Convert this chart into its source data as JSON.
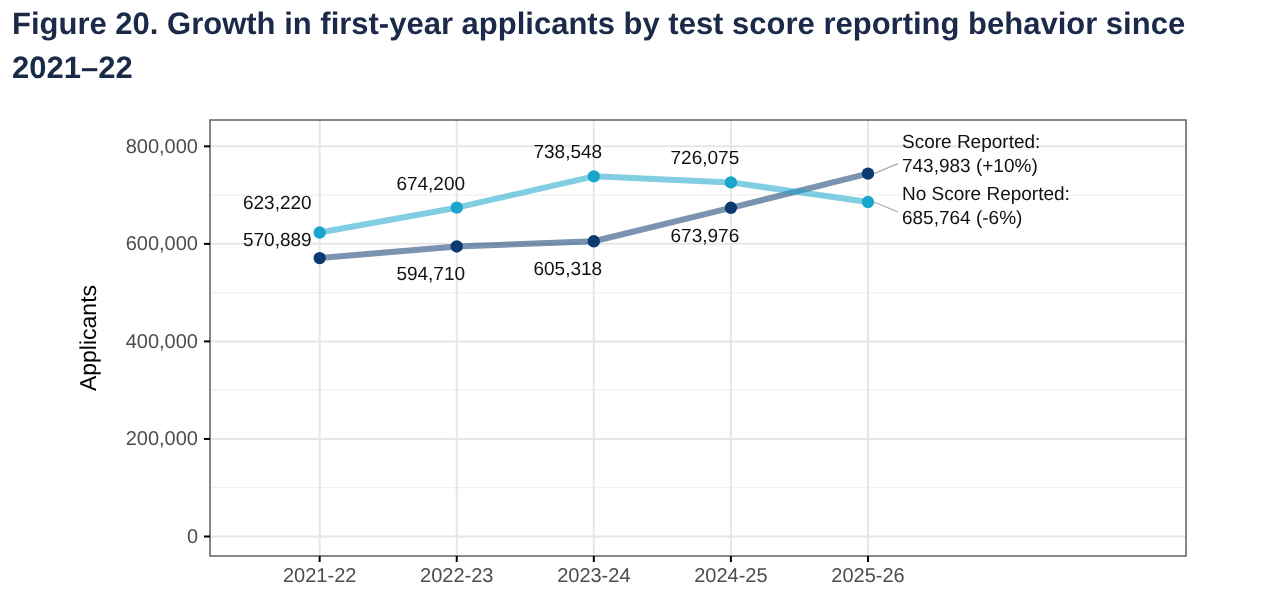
{
  "chart_data": {
    "type": "line",
    "title": "Figure 20. Growth in first-year applicants by test score reporting behavior since 2021–22",
    "ylabel": "Applicants",
    "categories": [
      "2021-22",
      "2022-23",
      "2023-24",
      "2024-25",
      "2025-26"
    ],
    "series": [
      {
        "name": "Score Reported:",
        "color": "#0b3a70",
        "values": [
          570889,
          594710,
          605318,
          673976,
          743983
        ],
        "value_labels": [
          "570,889",
          "594,710",
          "605,318",
          "673,976",
          "743,983 (+10%)"
        ]
      },
      {
        "name": "No Score Reported:",
        "color": "#1aa6cc",
        "values": [
          623220,
          674200,
          738548,
          726075,
          685764
        ],
        "value_labels": [
          "623,220",
          "674,200",
          "738,548",
          "726,075",
          "685,764 (-6%)"
        ]
      }
    ],
    "ylim": [
      -40000,
      854000
    ],
    "yticks": [
      {
        "value": 0,
        "label": "0"
      },
      {
        "value": 200000,
        "label": "200,000"
      },
      {
        "value": 400000,
        "label": "400,000"
      },
      {
        "value": 600000,
        "label": "600,000"
      },
      {
        "value": 800000,
        "label": "800,000"
      }
    ],
    "grid": true,
    "marker": "circle",
    "line_style": "solid",
    "legend": false
  }
}
